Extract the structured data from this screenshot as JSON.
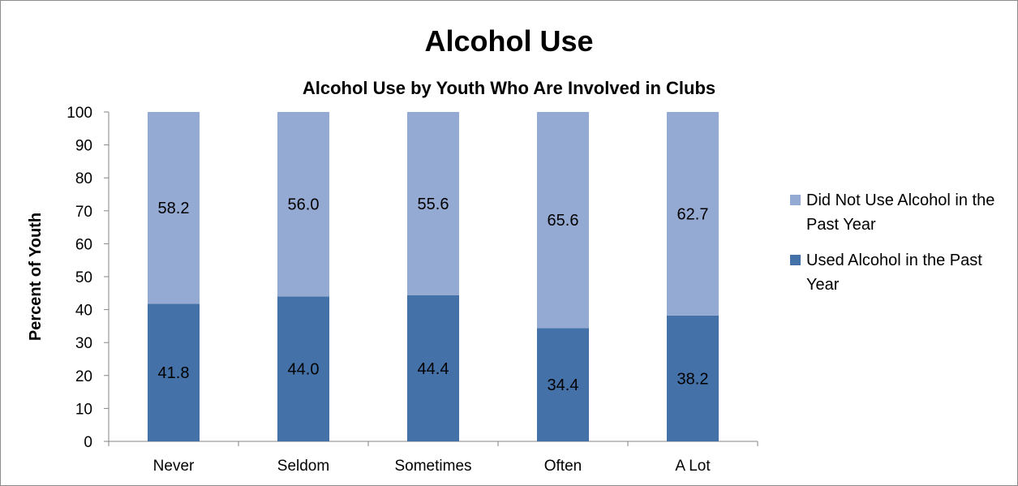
{
  "chart_data": {
    "type": "bar",
    "stacked": true,
    "title": "Alcohol Use",
    "subtitle": "Alcohol Use by Youth Who Are Involved in Clubs",
    "ylabel": "Percent of Youth",
    "xlabel": "",
    "ylim": [
      0,
      100
    ],
    "ytick_step": 10,
    "categories": [
      "Never",
      "Seldom",
      "Sometimes",
      "Often",
      "A Lot"
    ],
    "series": [
      {
        "name": "Used Alcohol in the Past Year",
        "color": "#4472a8",
        "values": [
          41.8,
          44.0,
          44.4,
          34.4,
          38.2
        ],
        "labels": [
          "41.8",
          "44.0",
          "44.4",
          "34.4",
          "38.2"
        ]
      },
      {
        "name": "Did Not Use Alcohol in the Past Year",
        "color": "#95aad3",
        "values": [
          58.2,
          56.0,
          55.6,
          65.6,
          62.7
        ],
        "labels": [
          "58.2",
          "56.0",
          "55.6",
          "65.6",
          "62.7"
        ]
      }
    ],
    "legend_position": "right",
    "grid": false
  }
}
